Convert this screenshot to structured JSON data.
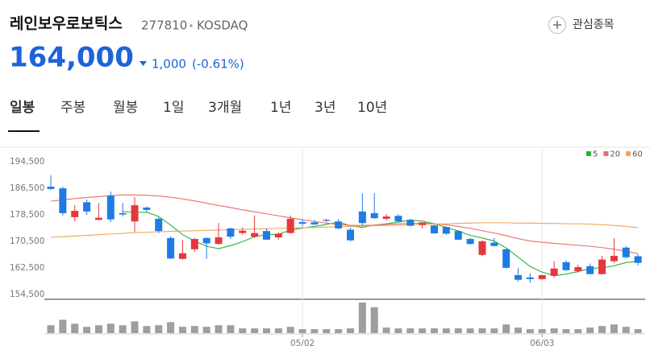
{
  "stock": {
    "name": "레인보우로보틱스",
    "code": "277810",
    "market": "KOSDAQ",
    "price": "164,000",
    "change": "1,000",
    "change_rate": "(-0.61%)"
  },
  "watch_button": "관심종목",
  "tabs": [
    "일봉",
    "주봉",
    "월봉",
    "1일",
    "3개월",
    "1년",
    "3년",
    "10년"
  ],
  "chart_data": {
    "type": "candlestick",
    "categories": [
      null,
      null,
      null,
      null,
      null,
      null,
      null,
      null,
      null,
      null,
      null,
      null,
      null,
      null,
      null,
      null,
      null,
      null,
      null,
      null,
      null,
      "05/02",
      null,
      null,
      null,
      null,
      null,
      null,
      null,
      null,
      null,
      null,
      null,
      null,
      null,
      null,
      null,
      null,
      null,
      null,
      null,
      "06/03",
      null,
      null,
      null,
      null,
      null,
      null,
      null,
      null
    ],
    "open": [
      187000,
      186500,
      177800,
      182300,
      177000,
      184300,
      179000,
      176500,
      180700,
      177300,
      171500,
      165200,
      168100,
      171500,
      169700,
      174400,
      173000,
      171900,
      173600,
      171700,
      173000,
      176300,
      176200,
      177000,
      176500,
      174000,
      179500,
      179000,
      177300,
      178200,
      177000,
      175400,
      175300,
      174800,
      173600,
      171200,
      166400,
      170100,
      168100,
      160300,
      159600,
      159100,
      160100,
      164200,
      161500,
      163000,
      160600,
      164500,
      168600,
      166000
    ],
    "high": [
      190400,
      187000,
      181400,
      183100,
      182000,
      185500,
      182000,
      183800,
      181000,
      177800,
      172000,
      171000,
      171500,
      171700,
      176000,
      174600,
      174700,
      178300,
      174400,
      173200,
      178300,
      177100,
      176900,
      177300,
      177200,
      174600,
      185000,
      185000,
      178700,
      178700,
      177300,
      176300,
      175500,
      175000,
      173900,
      171600,
      170800,
      171500,
      168300,
      162500,
      160800,
      160300,
      164500,
      164700,
      163500,
      163800,
      166100,
      171500,
      169100,
      166600
    ],
    "low": [
      186000,
      178300,
      176500,
      178500,
      176800,
      176300,
      178000,
      173400,
      179500,
      173000,
      165200,
      165000,
      167300,
      165200,
      169500,
      171200,
      172500,
      171500,
      171000,
      171000,
      172800,
      175000,
      175400,
      176300,
      174100,
      170500,
      175400,
      177300,
      176800,
      176400,
      175000,
      174400,
      172800,
      172500,
      170900,
      169500,
      166000,
      168900,
      162300,
      158400,
      158000,
      158900,
      159600,
      161500,
      161000,
      160500,
      160500,
      163900,
      165300,
      163200
    ],
    "close": [
      186300,
      179000,
      179700,
      179500,
      177600,
      177100,
      178600,
      181400,
      180000,
      173600,
      165300,
      166900,
      171200,
      169900,
      171700,
      171900,
      173700,
      173000,
      171000,
      172800,
      177300,
      175800,
      175600,
      176700,
      174400,
      170800,
      176000,
      177500,
      178000,
      176500,
      175200,
      176200,
      172900,
      172800,
      171000,
      169700,
      170500,
      169100,
      162500,
      158900,
      159100,
      160300,
      162300,
      161800,
      162700,
      160600,
      165000,
      166100,
      165700,
      164000
    ],
    "volume": [
      10,
      17,
      12,
      8,
      10,
      12,
      10,
      15,
      9,
      10,
      14,
      8,
      9,
      8,
      10,
      10,
      6,
      6,
      6,
      6,
      8,
      5,
      5,
      5,
      5,
      6,
      39,
      33,
      7,
      6,
      6,
      6,
      6,
      6,
      6,
      6,
      6,
      6,
      11,
      7,
      5,
      5,
      6,
      5,
      5,
      7,
      9,
      11,
      8,
      5
    ],
    "up_color": "#e5383b",
    "down_color": "#1f7be4",
    "volume_color": "#9e9e9e",
    "ylim": [
      153000,
      197200
    ],
    "yticks": [
      {
        "value": 194500,
        "label": "194,500"
      },
      {
        "value": 186500,
        "label": "186,500"
      },
      {
        "value": 178500,
        "label": "178,500"
      },
      {
        "value": 170500,
        "label": "170,500"
      },
      {
        "value": 162500,
        "label": "162,500"
      },
      {
        "value": 154500,
        "label": "154,500"
      }
    ],
    "legend": "top-right",
    "series": [
      {
        "name": "5",
        "color": "#27b43c",
        "values": [
          null,
          null,
          null,
          null,
          null,
          null,
          179500,
          179200,
          179300,
          178000,
          175400,
          172500,
          170600,
          169000,
          168300,
          169200,
          170400,
          171900,
          172600,
          172600,
          173900,
          174500,
          175000,
          175600,
          176300,
          175200,
          174700,
          175400,
          175800,
          176300,
          176900,
          176600,
          175800,
          174700,
          173600,
          172300,
          171500,
          170600,
          168500,
          165700,
          162900,
          161200,
          160100,
          160600,
          161400,
          162300,
          162500,
          163100,
          164100,
          164500
        ]
      },
      {
        "name": "20",
        "color": "#ef6a6a",
        "values": [
          182600,
          183000,
          183400,
          183700,
          184000,
          184300,
          184500,
          184500,
          184400,
          184200,
          183800,
          183300,
          182700,
          182000,
          181300,
          180700,
          180000,
          179400,
          178800,
          178200,
          177600,
          177000,
          176500,
          176000,
          175600,
          175300,
          175300,
          175400,
          175600,
          175800,
          175900,
          176000,
          175800,
          175500,
          175000,
          174400,
          173700,
          173000,
          172200,
          171300,
          170600,
          170200,
          169900,
          169600,
          169300,
          169000,
          168600,
          168100,
          167500,
          166800
        ]
      },
      {
        "name": "60",
        "color": "#f0a555",
        "values": [
          171700,
          171900,
          172100,
          172300,
          172500,
          172700,
          172900,
          173100,
          173200,
          173400,
          173500,
          173600,
          173700,
          173800,
          173900,
          174000,
          174100,
          174200,
          174300,
          174400,
          174500,
          174600,
          174700,
          174800,
          174900,
          175000,
          175100,
          175200,
          175300,
          175400,
          175500,
          175600,
          175700,
          175800,
          175900,
          176000,
          176100,
          176100,
          176100,
          176000,
          176000,
          175900,
          175900,
          175800,
          175800,
          175700,
          175500,
          175300,
          175000,
          174600
        ]
      }
    ]
  }
}
